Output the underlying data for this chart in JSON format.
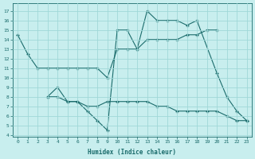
{
  "line1_x": [
    0,
    1,
    2,
    3,
    4,
    5,
    6,
    7,
    8,
    9,
    10,
    11,
    12,
    13,
    14,
    15,
    16,
    17,
    18,
    19,
    20
  ],
  "line1_y": [
    14.5,
    12.5,
    11.0,
    11.0,
    11.0,
    11.0,
    11.0,
    11.0,
    11.0,
    10.0,
    13.0,
    13.0,
    13.0,
    14.0,
    14.0,
    14.0,
    14.0,
    14.5,
    14.5,
    15.0,
    15.0
  ],
  "line2_x": [
    3,
    4,
    5,
    6,
    7,
    8,
    9,
    10,
    11,
    12,
    13,
    14,
    15,
    16,
    17,
    18,
    20,
    21,
    22,
    23
  ],
  "line2_y": [
    8.0,
    9.0,
    7.5,
    7.5,
    6.5,
    5.5,
    4.5,
    15.0,
    15.0,
    13.0,
    17.0,
    16.0,
    16.0,
    16.0,
    15.5,
    16.0,
    10.5,
    8.0,
    6.5,
    5.5
  ],
  "line3_x": [
    3,
    4,
    5,
    6,
    7,
    8,
    9,
    10,
    11,
    12,
    13,
    14,
    15,
    16,
    17,
    18,
    19,
    20,
    21,
    22,
    23
  ],
  "line3_y": [
    8.0,
    8.0,
    7.5,
    7.5,
    7.0,
    7.0,
    7.5,
    7.5,
    7.5,
    7.5,
    7.5,
    7.0,
    7.0,
    6.5,
    6.5,
    6.5,
    6.5,
    6.5,
    6.0,
    5.5,
    5.5
  ],
  "color": "#1a6b6b",
  "bg_color": "#c8eeee",
  "grid_color": "#a0d8d8",
  "xlabel": "Humidex (Indice chaleur)",
  "ylabel_ticks": [
    4,
    5,
    6,
    7,
    8,
    9,
    10,
    11,
    12,
    13,
    14,
    15,
    16,
    17
  ],
  "xlabel_ticks": [
    0,
    1,
    2,
    3,
    4,
    5,
    6,
    7,
    8,
    9,
    10,
    11,
    12,
    13,
    14,
    15,
    16,
    17,
    18,
    19,
    20,
    21,
    22,
    23
  ],
  "ylim": [
    3.8,
    17.8
  ],
  "xlim": [
    -0.5,
    23.5
  ]
}
